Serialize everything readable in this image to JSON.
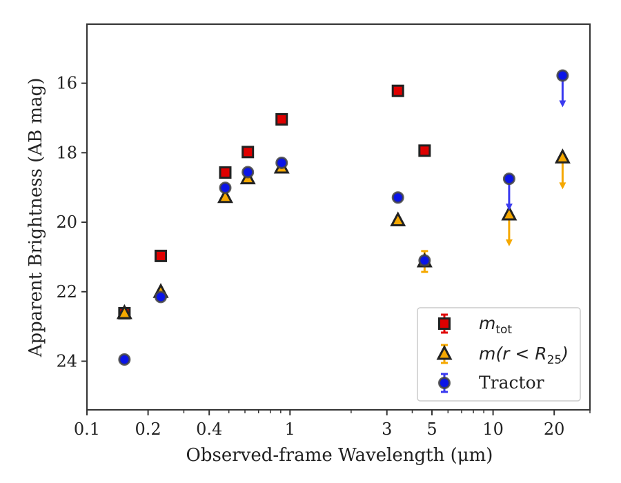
{
  "chart_data": {
    "type": "scatter",
    "title": "",
    "xlabel": "Observed-frame Wavelength (μm)",
    "ylabel": "Apparent Brightness (AB mag)",
    "xscale": "log",
    "xlim": [
      0.1,
      30
    ],
    "ylim": [
      25.4,
      14.3
    ],
    "y_inverted": true,
    "grid": false,
    "legend_position": "lower-right",
    "x_major_ticks": [
      {
        "value": 0.1,
        "label": "0.1"
      },
      {
        "value": 0.2,
        "label": "0.2"
      },
      {
        "value": 0.4,
        "label": "0.4"
      },
      {
        "value": 1,
        "label": "1"
      },
      {
        "value": 3,
        "label": "3"
      },
      {
        "value": 5,
        "label": "5"
      },
      {
        "value": 10,
        "label": "10"
      },
      {
        "value": 20,
        "label": "20"
      }
    ],
    "x_minor_ticks": [
      0.3,
      0.5,
      0.6,
      0.7,
      0.8,
      0.9,
      2,
      4,
      6,
      7,
      8,
      9,
      30
    ],
    "y_ticks": [
      {
        "value": 16,
        "label": "16"
      },
      {
        "value": 18,
        "label": "18"
      },
      {
        "value": 20,
        "label": "20"
      },
      {
        "value": 22,
        "label": "22"
      },
      {
        "value": 24,
        "label": "24"
      }
    ],
    "series": [
      {
        "key": "mtot",
        "legend_main": "m",
        "legend_sub": "tot",
        "marker": "square",
        "face_color": "#e00000",
        "errorbar_color": "#e00000",
        "points": [
          {
            "x": 0.153,
            "y": 22.62
          },
          {
            "x": 0.231,
            "y": 20.97
          },
          {
            "x": 0.48,
            "y": 18.57
          },
          {
            "x": 0.62,
            "y": 17.98
          },
          {
            "x": 0.91,
            "y": 17.04
          },
          {
            "x": 3.4,
            "y": 16.22
          },
          {
            "x": 4.6,
            "y": 17.94
          }
        ]
      },
      {
        "key": "mr25",
        "legend_main": "m(r < R",
        "legend_sub": "25",
        "legend_end": ")",
        "marker": "triangle",
        "face_color": "#f5a800",
        "errorbar_color": "#f5a800",
        "points": [
          {
            "x": 0.153,
            "y": 22.62
          },
          {
            "x": 0.231,
            "y": 22.01
          },
          {
            "x": 0.48,
            "y": 19.28
          },
          {
            "x": 0.62,
            "y": 18.74
          },
          {
            "x": 0.91,
            "y": 18.43
          },
          {
            "x": 3.4,
            "y": 19.95
          },
          {
            "x": 4.6,
            "y": 21.13,
            "yerr": 0.3
          },
          {
            "x": 12.0,
            "y": 19.78,
            "upper_limit": true
          },
          {
            "x": 22.0,
            "y": 18.14,
            "upper_limit": true
          }
        ]
      },
      {
        "key": "tractor",
        "legend_main": "Tractor",
        "marker": "circle",
        "face_color": "#0a14e8",
        "errorbar_color": "#3a3af0",
        "points": [
          {
            "x": 0.153,
            "y": 23.95
          },
          {
            "x": 0.231,
            "y": 22.15
          },
          {
            "x": 0.48,
            "y": 19.01
          },
          {
            "x": 0.62,
            "y": 18.56
          },
          {
            "x": 0.91,
            "y": 18.29
          },
          {
            "x": 3.4,
            "y": 19.29
          },
          {
            "x": 4.6,
            "y": 21.1
          },
          {
            "x": 12.0,
            "y": 18.75,
            "upper_limit": true
          },
          {
            "x": 22.0,
            "y": 15.78,
            "upper_limit": true
          }
        ]
      }
    ]
  }
}
